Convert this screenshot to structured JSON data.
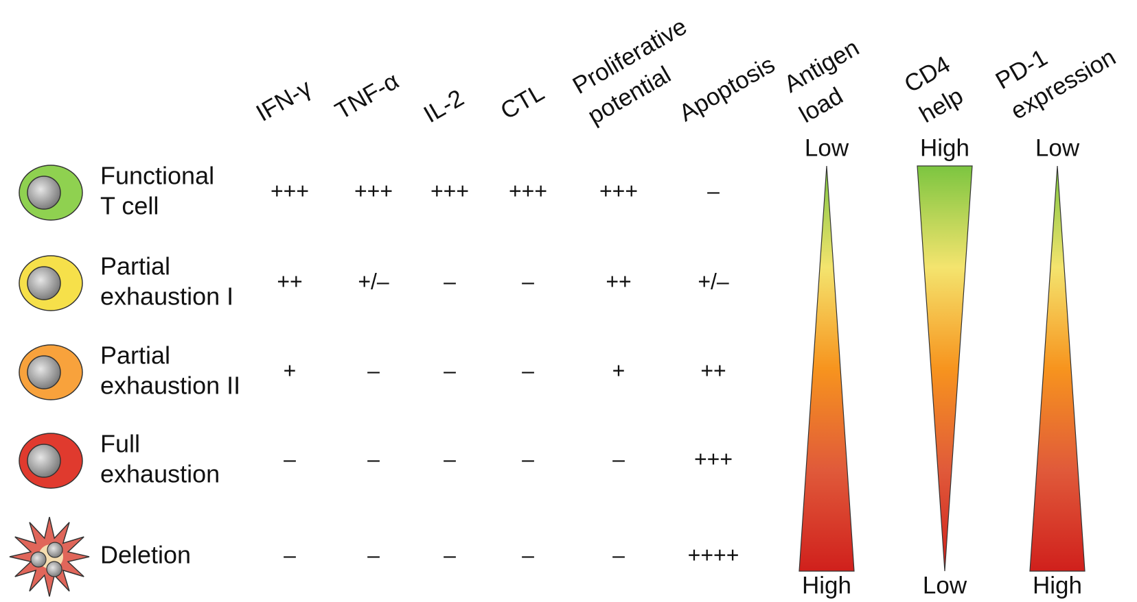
{
  "columns": [
    [
      "IFN-γ"
    ],
    [
      "TNF-α"
    ],
    [
      "IL-2"
    ],
    [
      "CTL"
    ],
    [
      "Proliferative",
      "potential"
    ],
    [
      "Apoptosis"
    ]
  ],
  "gradients": [
    {
      "label": [
        "Antigen",
        "load"
      ],
      "top": "Low",
      "bottom": "High"
    },
    {
      "label": [
        "CD4",
        "help"
      ],
      "top": "High",
      "bottom": "Low"
    },
    {
      "label": [
        "PD-1",
        "expression"
      ],
      "top": "Low",
      "bottom": "High"
    }
  ],
  "rows": [
    {
      "label": [
        "Functional",
        "T cell"
      ],
      "values": [
        "+++",
        "+++",
        "+++",
        "+++",
        "+++",
        "–"
      ]
    },
    {
      "label": [
        "Partial",
        "exhaustion I"
      ],
      "values": [
        "++",
        "+/–",
        "–",
        "–",
        "++",
        "+/–"
      ]
    },
    {
      "label": [
        "Partial",
        "exhaustion II"
      ],
      "values": [
        "+",
        "–",
        "–",
        "–",
        "+",
        "++"
      ]
    },
    {
      "label": [
        "Full",
        "exhaustion"
      ],
      "values": [
        "–",
        "–",
        "–",
        "–",
        "–",
        "+++"
      ]
    },
    {
      "label": [
        "Deletion"
      ],
      "values": [
        "–",
        "–",
        "–",
        "–",
        "–",
        "++++"
      ]
    }
  ]
}
